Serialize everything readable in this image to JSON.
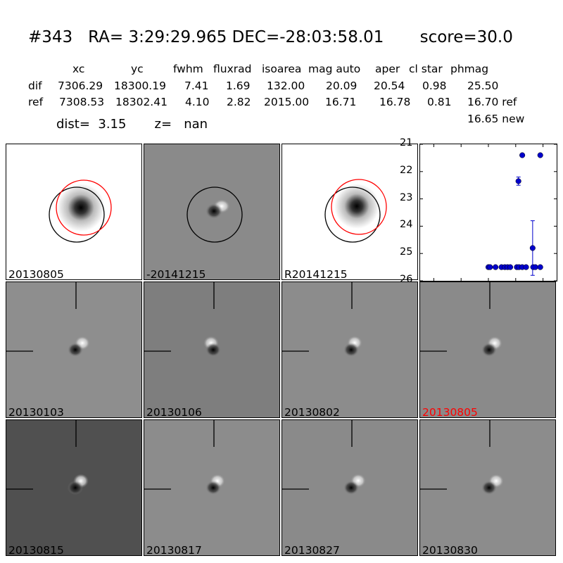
{
  "header": {
    "title": "#343   RA= 3:29:29.965 DEC=-28:03:58.01       score=30.0",
    "columns": [
      "xc",
      "yc",
      "fwhm",
      "fluxrad",
      "isoarea",
      "mag auto",
      "aper",
      "cl star",
      "phmag"
    ],
    "rows": [
      {
        "label": "dif",
        "values": [
          "7306.29",
          "18300.19",
          "7.41",
          "1.69",
          "132.00",
          "20.09",
          "20.54",
          "0.98",
          "25.50"
        ]
      },
      {
        "label": "ref",
        "values": [
          "7308.53",
          "18302.41",
          "4.10",
          "2.82",
          "2015.00",
          "16.71",
          "16.78",
          "0.81",
          "16.70 ref"
        ]
      }
    ],
    "extra_phmag": "16.65 new",
    "dist": "dist=  3.15       z=   nan"
  },
  "top_tiles": [
    "20130805",
    "-20141215",
    "R20141215"
  ],
  "grid_tiles": [
    {
      "label": "20130103",
      "highlight": false
    },
    {
      "label": "20130106",
      "highlight": false
    },
    {
      "label": "20130802",
      "highlight": false
    },
    {
      "label": "20130805",
      "highlight": true
    },
    {
      "label": "20130815",
      "highlight": false
    },
    {
      "label": "20130817",
      "highlight": false
    },
    {
      "label": "20130827",
      "highlight": false
    },
    {
      "label": "20130830",
      "highlight": false
    }
  ],
  "colors": {
    "highlight": "#ff0000",
    "points": "#0000cc",
    "ref_circle": "#ff0000",
    "det_circle": "#000000"
  },
  "chart_data": {
    "type": "scatter",
    "xlim": [
      -125,
      125
    ],
    "ylim": [
      26,
      21
    ],
    "x_ticks": [
      "-100",
      "-50",
      "0",
      "50",
      "100"
    ],
    "y_ticks": [
      "21",
      "22",
      "23",
      "24",
      "25",
      "26"
    ],
    "points": [
      {
        "x": 0,
        "y": 25.5
      },
      {
        "x": 3,
        "y": 25.5
      },
      {
        "x": 13,
        "y": 25.5
      },
      {
        "x": 24,
        "y": 25.5
      },
      {
        "x": 30,
        "y": 25.5
      },
      {
        "x": 35,
        "y": 25.5
      },
      {
        "x": 40,
        "y": 25.5
      },
      {
        "x": 52,
        "y": 25.5
      },
      {
        "x": 56,
        "y": 25.5
      },
      {
        "x": 62,
        "y": 25.5
      },
      {
        "x": 69,
        "y": 25.5
      },
      {
        "x": 82,
        "y": 25.5
      },
      {
        "x": 86,
        "y": 25.5
      },
      {
        "x": 95,
        "y": 25.5
      },
      {
        "x": 55,
        "y": 22.35,
        "err": 0.15
      },
      {
        "x": 62,
        "y": 21.4
      },
      {
        "x": 95,
        "y": 21.4
      },
      {
        "x": 81,
        "y": 24.8,
        "err": 1.0
      }
    ]
  }
}
